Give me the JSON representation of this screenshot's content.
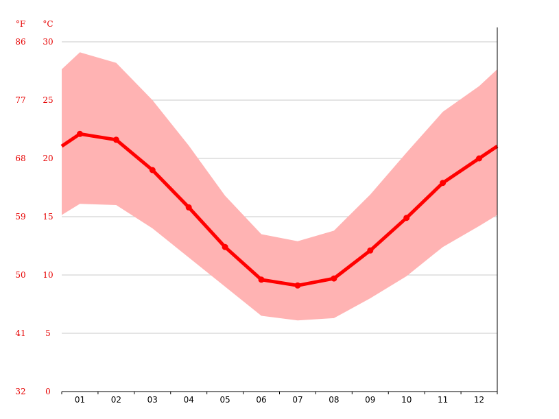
{
  "chart_data": {
    "type": "area",
    "title": "",
    "xlabel": "",
    "ylabel": "",
    "y_units": {
      "left": "°F",
      "right": "°C"
    },
    "categories": [
      "01",
      "02",
      "03",
      "04",
      "05",
      "06",
      "07",
      "08",
      "09",
      "10",
      "11",
      "12"
    ],
    "y_ticks_c": [
      0,
      5,
      10,
      15,
      20,
      25,
      30
    ],
    "y_ticks_f": [
      32,
      41,
      50,
      59,
      68,
      77,
      86
    ],
    "ylim": [
      0,
      31
    ],
    "grid": true,
    "series": [
      {
        "name": "",
        "kind": "line",
        "values": [
          22.1,
          21.6,
          19.0,
          15.8,
          12.4,
          9.6,
          9.1,
          9.7,
          12.1,
          14.9,
          17.9,
          20.0
        ]
      },
      {
        "name": "",
        "kind": "band-max",
        "values": [
          29.1,
          28.2,
          25.0,
          21.1,
          16.8,
          13.5,
          12.9,
          13.8,
          16.9,
          20.5,
          24.0,
          26.2
        ]
      },
      {
        "name": "",
        "kind": "band-min",
        "values": [
          16.1,
          16.0,
          14.0,
          11.5,
          9.0,
          6.5,
          6.1,
          6.3,
          8.0,
          9.9,
          12.4,
          14.2
        ]
      }
    ],
    "colors": {
      "line": "#ff0000",
      "band": "#ffb3b3",
      "grid": "#c8c8c8",
      "axis": "#000000",
      "labels_y": "#e60000",
      "labels_x": "#000000"
    }
  }
}
